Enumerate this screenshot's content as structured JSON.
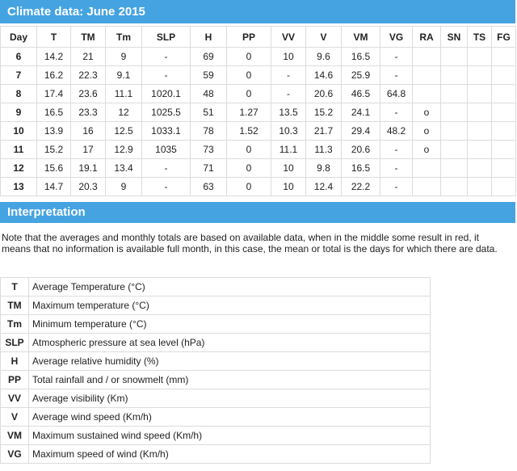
{
  "header": {
    "title": "Climate data: June 2015"
  },
  "table": {
    "columns": [
      "Day",
      "T",
      "TM",
      "Tm",
      "SLP",
      "H",
      "PP",
      "VV",
      "V",
      "VM",
      "VG",
      "RA",
      "SN",
      "TS",
      "FG"
    ],
    "rows": [
      [
        "6",
        "14.2",
        "21",
        "9",
        "-",
        "69",
        "0",
        "10",
        "9.6",
        "16.5",
        "-"
      ],
      [
        "7",
        "16.2",
        "22.3",
        "9.1",
        "-",
        "59",
        "0",
        "-",
        "14.6",
        "25.9",
        "-"
      ],
      [
        "8",
        "17.4",
        "23.6",
        "11.1",
        "1020.1",
        "48",
        "0",
        "-",
        "20.6",
        "46.5",
        "64.8"
      ],
      [
        "9",
        "16.5",
        "23.3",
        "12",
        "1025.5",
        "51",
        "1.27",
        "13.5",
        "15.2",
        "24.1",
        "-",
        "o"
      ],
      [
        "10",
        "13.9",
        "16",
        "12.5",
        "1033.1",
        "78",
        "1.52",
        "10.3",
        "21.7",
        "29.4",
        "48.2",
        "o"
      ],
      [
        "11",
        "15.2",
        "17",
        "12.9",
        "1035",
        "73",
        "0",
        "11.1",
        "11.3",
        "20.6",
        "-",
        "o"
      ],
      [
        "12",
        "15.6",
        "19.1",
        "13.4",
        "-",
        "71",
        "0",
        "10",
        "9.8",
        "16.5",
        "-"
      ],
      [
        "13",
        "14.7",
        "20.3",
        "9",
        "-",
        "63",
        "0",
        "10",
        "12.4",
        "22.2",
        "-"
      ]
    ]
  },
  "interpretation": {
    "title": "Interpretation",
    "note": "Note that the averages and monthly totals are based on available data, when in the middle some result in red, it means that no information is available full month, in this case, the mean or total is the days for which there are data.",
    "legend": [
      [
        "T",
        "Average Temperature (°C)"
      ],
      [
        "TM",
        "Maximum temperature (°C)"
      ],
      [
        "Tm",
        "Minimum temperature (°C)"
      ],
      [
        "SLP",
        "Atmospheric pressure at sea level (hPa)"
      ],
      [
        "H",
        "Average relative humidity (%)"
      ],
      [
        "PP",
        "Total rainfall and / or snowmelt (mm)"
      ],
      [
        "VV",
        "Average visibility (Km)"
      ],
      [
        "V",
        "Average wind speed (Km/h)"
      ],
      [
        "VM",
        "Maximum sustained wind speed (Km/h)"
      ],
      [
        "VG",
        "Maximum speed of wind (Km/h)"
      ]
    ]
  }
}
